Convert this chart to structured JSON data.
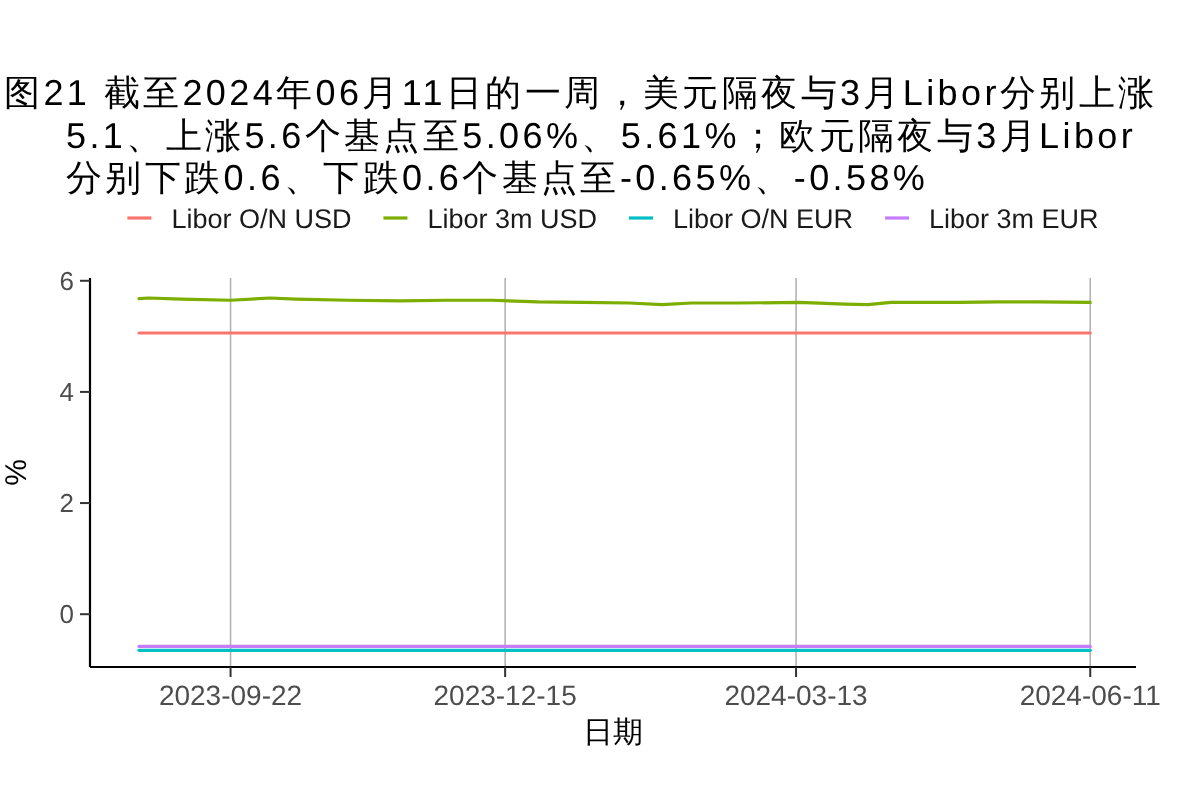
{
  "chart_data": {
    "type": "line",
    "title": "图21  截至2024年06月11日的一周，美元隔夜与3月Libor分别上涨5.1、上涨5.6个基点至5.06%、5.61%；欧元隔夜与3月Libor分别下跌0.6、下跌0.6个基点至-0.65%、-0.58%",
    "xlabel": "日期",
    "ylabel": "%",
    "x": [
      "2023-08-25",
      "2023-08-28",
      "2023-09-07",
      "2023-09-22",
      "2023-10-04",
      "2023-10-12",
      "2023-10-28",
      "2023-11-13",
      "2023-11-27",
      "2023-12-11",
      "2023-12-25",
      "2024-01-08",
      "2024-01-22",
      "2024-02-01",
      "2024-02-10",
      "2024-02-24",
      "2024-03-14",
      "2024-03-28",
      "2024-04-04",
      "2024-04-11",
      "2024-05-02",
      "2024-05-14",
      "2024-05-26",
      "2024-06-11"
    ],
    "series": [
      {
        "name": "Libor O/N USD",
        "color": "#f8766d",
        "x": [
          "2023-08-25",
          "2024-06-11"
        ],
        "values": [
          5.06,
          5.06
        ]
      },
      {
        "name": "Libor 3m USD",
        "color": "#7cae00",
        "values": [
          5.68,
          5.69,
          5.67,
          5.65,
          5.69,
          5.67,
          5.65,
          5.64,
          5.65,
          5.65,
          5.62,
          5.61,
          5.6,
          5.57,
          5.6,
          5.6,
          5.61,
          5.58,
          5.57,
          5.61,
          5.61,
          5.62,
          5.62,
          5.61
        ]
      },
      {
        "name": "Libor O/N EUR",
        "color": "#00bfc4",
        "x": [
          "2023-08-25",
          "2024-06-11"
        ],
        "values": [
          -0.65,
          -0.65
        ]
      },
      {
        "name": "Libor 3m EUR",
        "color": "#c77cff",
        "x": [
          "2023-08-25",
          "2024-06-11"
        ],
        "values": [
          -0.58,
          -0.58
        ]
      }
    ],
    "xlim": [
      "2023-08-10",
      "2024-06-25"
    ],
    "xticks": [
      "2023-09-22",
      "2023-12-15",
      "2024-03-13",
      "2024-06-11"
    ],
    "ylim": [
      -0.95,
      6.05
    ],
    "yticks": [
      0,
      2,
      4,
      6
    ],
    "grid": "x",
    "legend": "top"
  }
}
